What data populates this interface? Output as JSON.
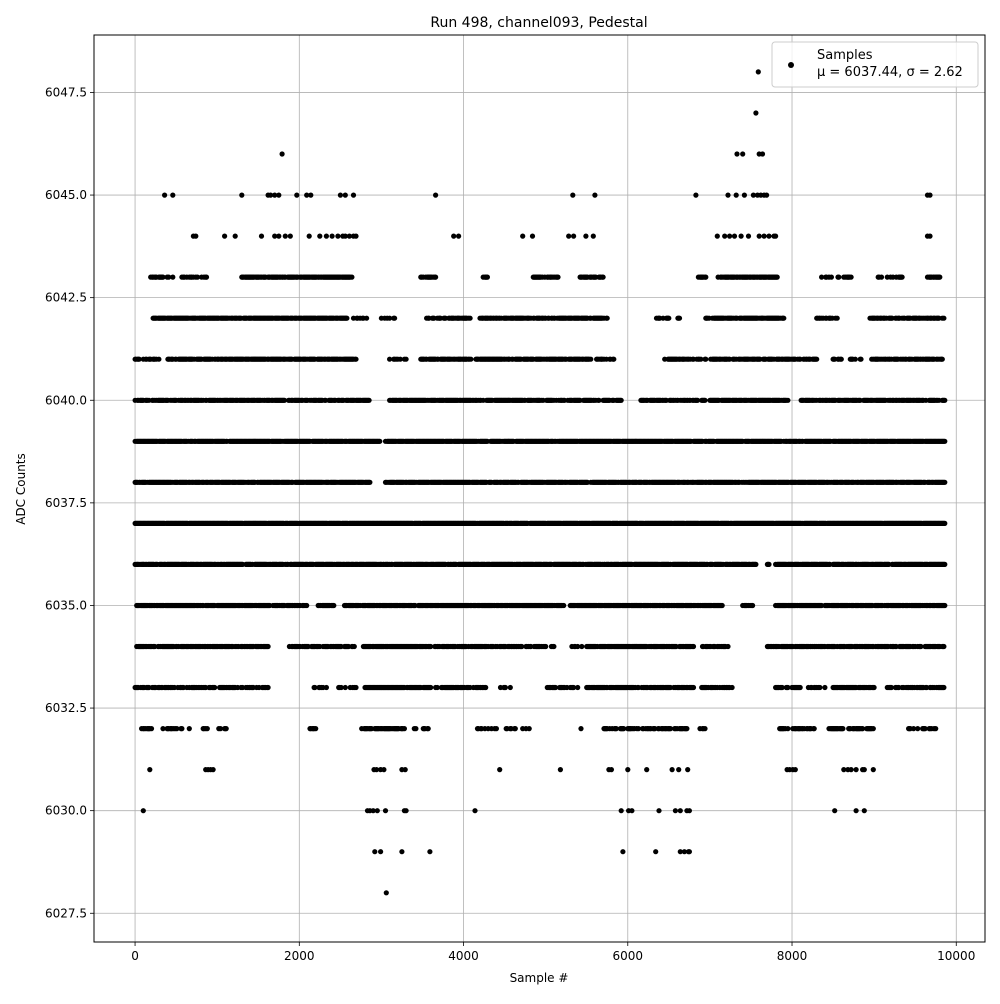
{
  "chart_data": {
    "type": "scatter",
    "title": "Run 498, channel093, Pedestal",
    "xlabel": "Sample #",
    "ylabel": "ADC Counts",
    "xlim": [
      -500,
      10350
    ],
    "ylim": [
      6026.8,
      6048.9
    ],
    "xticks": [
      0,
      2000,
      4000,
      6000,
      8000,
      10000
    ],
    "xtick_labels": [
      "0",
      "2000",
      "4000",
      "6000",
      "8000",
      "10000"
    ],
    "yticks": [
      6027.5,
      6030.0,
      6032.5,
      6035.0,
      6037.5,
      6040.0,
      6042.5,
      6045.0,
      6047.5
    ],
    "ytick_labels": [
      "6027.5",
      "6030.0",
      "6032.5",
      "6035.0",
      "6037.5",
      "6040.0",
      "6042.5",
      "6045.0",
      "6047.5"
    ],
    "grid": true,
    "marker_color": "#000000",
    "legend": {
      "placement": "top-right",
      "entries": [
        {
          "label": "Samples",
          "stats": "μ = 6037.44, σ = 2.62"
        }
      ]
    },
    "series": [
      {
        "name": "Samples",
        "levels": [
          {
            "y": 6028,
            "x": [
              3060
            ]
          },
          {
            "y": 6029,
            "x": [
              2920,
              2990,
              3250,
              3590,
              5940,
              6340,
              6640,
              6690,
              6740,
              6750
            ]
          },
          {
            "y": 6030,
            "x": [
              100,
              2830,
              2860,
              2900,
              2950,
              3050,
              3280,
              3300,
              4140,
              5920,
              6010,
              6050,
              6380,
              6580,
              6640,
              6720,
              6750,
              8520,
              8780,
              8880
            ]
          },
          {
            "y": 6031,
            "x": [
              180,
              860,
              890,
              920,
              950,
              2910,
              2940,
              2990,
              3030,
              3250,
              3290,
              4440,
              5180,
              5770,
              5800,
              6000,
              6230,
              6540,
              6620,
              6730,
              7940,
              7970,
              8010,
              8040,
              8630,
              8680,
              8720,
              8780,
              8860,
              8880,
              8990
            ]
          },
          {
            "y": 6032,
            "xs": [
              [
                60,
                200,
                0.5
              ],
              [
                330,
                680,
                0.25
              ],
              [
                820,
                1160,
                0.3
              ],
              [
                2100,
                2230,
                0.3
              ],
              [
                2760,
                3290,
                0.7
              ],
              [
                3400,
                3600,
                0.35
              ],
              [
                4120,
                4800,
                0.3
              ],
              [
                5430,
                5430,
                1
              ],
              [
                5700,
                6720,
                0.6
              ],
              [
                6880,
                6940,
                0.5
              ],
              [
                7850,
                8270,
                0.55
              ],
              [
                8450,
                8990,
                0.6
              ],
              [
                9420,
                9760,
                0.45
              ]
            ]
          },
          {
            "y": 6033,
            "xs": [
              [
                0,
                1620,
                0.55
              ],
              [
                2180,
                2330,
                0.5
              ],
              [
                2450,
                2700,
                0.35
              ],
              [
                2800,
                3600,
                0.9
              ],
              [
                3630,
                4270,
                0.6
              ],
              [
                4450,
                4570,
                0.5
              ],
              [
                5000,
                5400,
                0.45
              ],
              [
                5500,
                6800,
                0.8
              ],
              [
                6900,
                7280,
                0.55
              ],
              [
                7800,
                8100,
                0.75
              ],
              [
                8200,
                8400,
                0.5
              ],
              [
                8500,
                9000,
                0.7
              ],
              [
                9150,
                9850,
                0.6
              ]
            ]
          },
          {
            "y": 6034,
            "xs": [
              [
                0,
                1620,
                0.75
              ],
              [
                1880,
                2700,
                0.6
              ],
              [
                2780,
                3600,
                0.85
              ],
              [
                3650,
                5100,
                0.65
              ],
              [
                5300,
                5450,
                0.5
              ],
              [
                5500,
                6800,
                0.85
              ],
              [
                6900,
                7250,
                0.6
              ],
              [
                7700,
                9850,
                0.75
              ]
            ]
          },
          {
            "y": 6035,
            "xs": [
              [
                0,
                1640,
                0.8
              ],
              [
                1670,
                2100,
                0.6
              ],
              [
                2200,
                2430,
                0.7
              ],
              [
                2550,
                5220,
                0.85
              ],
              [
                5300,
                7150,
                0.85
              ],
              [
                7400,
                7530,
                0.55
              ],
              [
                7800,
                9860,
                0.85
              ]
            ]
          },
          {
            "y": 6036,
            "xs": [
              [
                0,
                1800,
                0.85
              ],
              [
                1820,
                7560,
                0.85
              ],
              [
                7700,
                7720,
                1
              ],
              [
                7800,
                9860,
                0.85
              ]
            ]
          },
          {
            "y": 6037,
            "xs": [
              [
                0,
                9860,
                0.95
              ]
            ]
          },
          {
            "y": 6038,
            "xs": [
              [
                0,
                2860,
                0.9
              ],
              [
                3050,
                9860,
                0.9
              ]
            ]
          },
          {
            "y": 6039,
            "xs": [
              [
                0,
                2980,
                0.9
              ],
              [
                3050,
                9860,
                0.9
              ]
            ]
          },
          {
            "y": 6040,
            "xs": [
              [
                0,
                2850,
                0.75
              ],
              [
                3100,
                4980,
                0.85
              ],
              [
                5000,
                5920,
                0.7
              ],
              [
                6150,
                6850,
                0.6
              ],
              [
                6900,
                7950,
                0.85
              ],
              [
                8100,
                9860,
                0.75
              ]
            ]
          },
          {
            "y": 6041,
            "xs": [
              [
                0,
                300,
                0.6
              ],
              [
                400,
                2700,
                0.85
              ],
              [
                3100,
                3300,
                0.4
              ],
              [
                3470,
                4100,
                0.75
              ],
              [
                4150,
                5550,
                0.8
              ],
              [
                5600,
                5830,
                0.55
              ],
              [
                6450,
                6950,
                0.5
              ],
              [
                7000,
                8300,
                0.75
              ],
              [
                8500,
                8600,
                0.5
              ],
              [
                8700,
                8850,
                0.45
              ],
              [
                8950,
                9830,
                0.7
              ]
            ]
          },
          {
            "y": 6042,
            "xs": [
              [
                200,
                2600,
                0.85
              ],
              [
                2650,
                2820,
                0.5
              ],
              [
                3000,
                3200,
                0.35
              ],
              [
                3550,
                4100,
                0.6
              ],
              [
                4200,
                5750,
                0.75
              ],
              [
                6350,
                6650,
                0.4
              ],
              [
                6950,
                7900,
                0.85
              ],
              [
                8300,
                8550,
                0.45
              ],
              [
                8950,
                9850,
                0.7
              ]
            ]
          },
          {
            "y": 6043,
            "xs": [
              [
                180,
                900,
                0.4
              ],
              [
                1300,
                2650,
                0.8
              ],
              [
                3480,
                3670,
                0.5
              ],
              [
                4200,
                4300,
                0.5
              ],
              [
                4850,
                5150,
                0.6
              ],
              [
                5400,
                5700,
                0.65
              ],
              [
                6860,
                6960,
                0.5
              ],
              [
                7100,
                7820,
                0.8
              ],
              [
                8350,
                8730,
                0.35
              ],
              [
                9050,
                9350,
                0.4
              ],
              [
                9650,
                9800,
                0.6
              ]
            ]
          },
          {
            "y": 6044,
            "x": [
              710,
              740,
              1090,
              1220,
              1540,
              1700,
              1750,
              1830,
              1890,
              2120,
              2250,
              2330,
              2400,
              2470,
              2530,
              2560,
              2610,
              2660,
              2690,
              3880,
              3940,
              4720,
              4840,
              5280,
              5340,
              5490,
              5580,
              7090,
              7180,
              7240,
              7300,
              7380,
              7470,
              7600,
              7660,
              7720,
              7780,
              7800,
              9650,
              9680
            ]
          },
          {
            "y": 6045,
            "x": [
              360,
              460,
              1300,
              1620,
              1650,
              1700,
              1750,
              1970,
              2090,
              2140,
              2500,
              2560,
              2660,
              3660,
              5330,
              5600,
              6830,
              7220,
              7320,
              7420,
              7530,
              7580,
              7620,
              7660,
              7690,
              9650,
              9680
            ]
          },
          {
            "y": 6046,
            "x": [
              1790,
              7330,
              7400,
              7600,
              7640
            ]
          },
          {
            "y": 6047,
            "x": [
              7560
            ]
          },
          {
            "y": 6048,
            "x": [
              7590
            ]
          }
        ]
      }
    ]
  }
}
